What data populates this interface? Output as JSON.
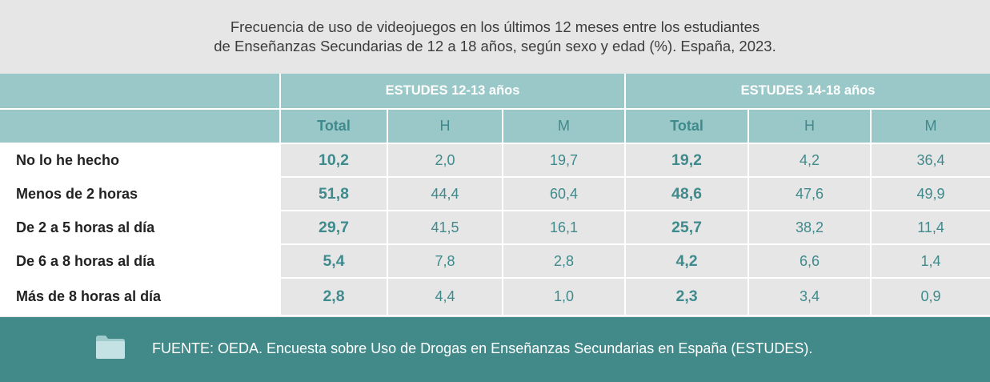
{
  "title": {
    "line1": "Frecuencia de uso de videojuegos en los últimos 12 meses entre los estudiantes",
    "line2": "de Enseñanzas Secundarias de 12 a 18 años, según sexo y edad (%). España, 2023."
  },
  "groups": [
    "ESTUDES 12-13 años",
    "ESTUDES 14-18 años"
  ],
  "subheaders": [
    "Total",
    "H",
    "M",
    "Total",
    "H",
    "M"
  ],
  "rows": [
    {
      "label": "No lo he hecho",
      "values": [
        "10,2",
        "2,0",
        "19,7",
        "19,2",
        "4,2",
        "36,4"
      ]
    },
    {
      "label": "Menos de 2 horas",
      "values": [
        "51,8",
        "44,4",
        "60,4",
        "48,6",
        "47,6",
        "49,9"
      ]
    },
    {
      "label": "De 2 a 5 horas al día",
      "values": [
        "29,7",
        "41,5",
        "16,1",
        "25,7",
        "38,2",
        "11,4"
      ]
    },
    {
      "label": "De 6 a 8 horas al día",
      "values": [
        "5,4",
        "7,8",
        "2,8",
        "4,2",
        "6,6",
        "1,4"
      ]
    },
    {
      "label": "Más de 8 horas al día",
      "values": [
        "2,8",
        "4,4",
        "1,0",
        "2,3",
        "3,4",
        "0,9"
      ]
    }
  ],
  "footer": {
    "icon": "folder-icon",
    "source": "FUENTE: OEDA. Encuesta sobre Uso de Drogas en Enseñanzas Secundarias en España (ESTUDES)."
  },
  "colors": {
    "header_bg": "#9ac7c8",
    "accent": "#3f8a8c",
    "footer_bg": "#428a8a",
    "page_bg": "#e6e6e6"
  }
}
